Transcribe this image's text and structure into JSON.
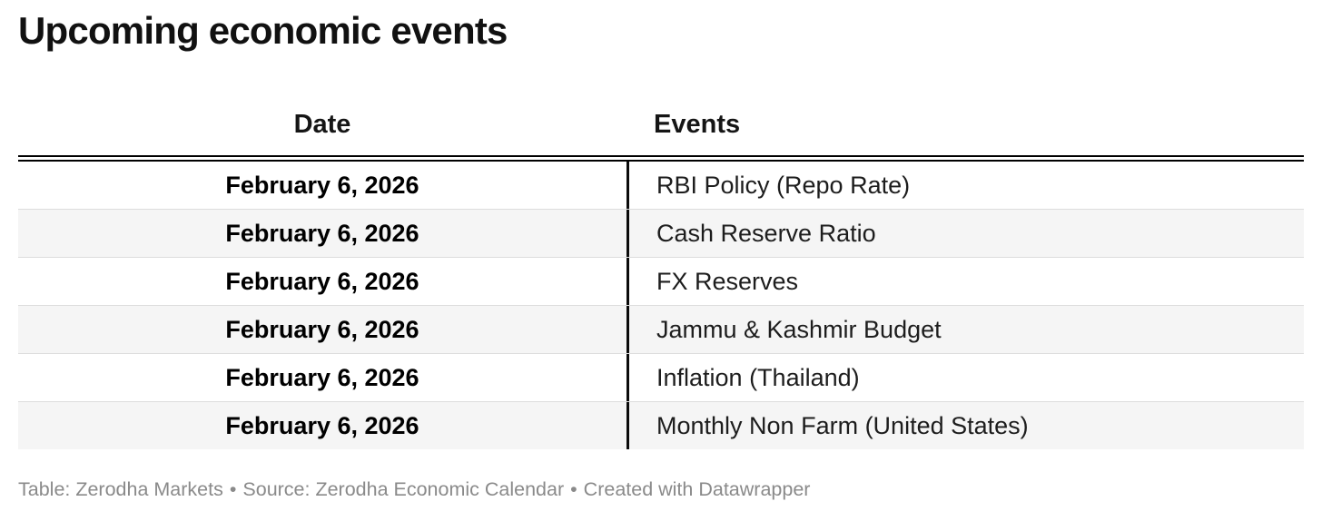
{
  "title": "Upcoming economic events",
  "table": {
    "columns": [
      {
        "label": "Date",
        "align": "center"
      },
      {
        "label": "Events",
        "align": "left"
      }
    ],
    "rows": [
      {
        "date": "February 6, 2026",
        "event": "RBI Policy (Repo Rate)"
      },
      {
        "date": "February 6, 2026",
        "event": "Cash Reserve Ratio"
      },
      {
        "date": "February 6, 2026",
        "event": "FX Reserves"
      },
      {
        "date": "February 6, 2026",
        "event": "Jammu & Kashmir Budget"
      },
      {
        "date": "February 6, 2026",
        "event": "Inflation (Thailand)"
      },
      {
        "date": "February 6, 2026",
        "event": "Monthly Non Farm (United States)"
      }
    ]
  },
  "footer": {
    "table_credit": "Table: Zerodha Markets",
    "separator": "•",
    "source_credit": "Source: Zerodha Economic Calendar",
    "created_credit": "Created with Datawrapper"
  },
  "colors": {
    "title_text": "#111111",
    "body_text": "#1d1d1d",
    "stripe_background": "#f5f5f5",
    "row_divider": "#dddddd",
    "header_rule": "#000000",
    "column_divider": "#0b0b0b",
    "footer_text": "#8a8a8a"
  },
  "chart_data": {
    "type": "table",
    "title": "Upcoming economic events",
    "columns": [
      "Date",
      "Events"
    ],
    "rows": [
      [
        "February 6, 2026",
        "RBI Policy (Repo Rate)"
      ],
      [
        "February 6, 2026",
        "Cash Reserve Ratio"
      ],
      [
        "February 6, 2026",
        "FX Reserves"
      ],
      [
        "February 6, 2026",
        "Jammu & Kashmir Budget"
      ],
      [
        "February 6, 2026",
        "Inflation (Thailand)"
      ],
      [
        "February 6, 2026",
        "Monthly Non Farm (United States)"
      ]
    ],
    "layout": {
      "date_column_align": "center",
      "events_column_align": "left",
      "striped_rows": true,
      "header_rule": "double-black",
      "column_divider": "vertical-black-line"
    }
  }
}
